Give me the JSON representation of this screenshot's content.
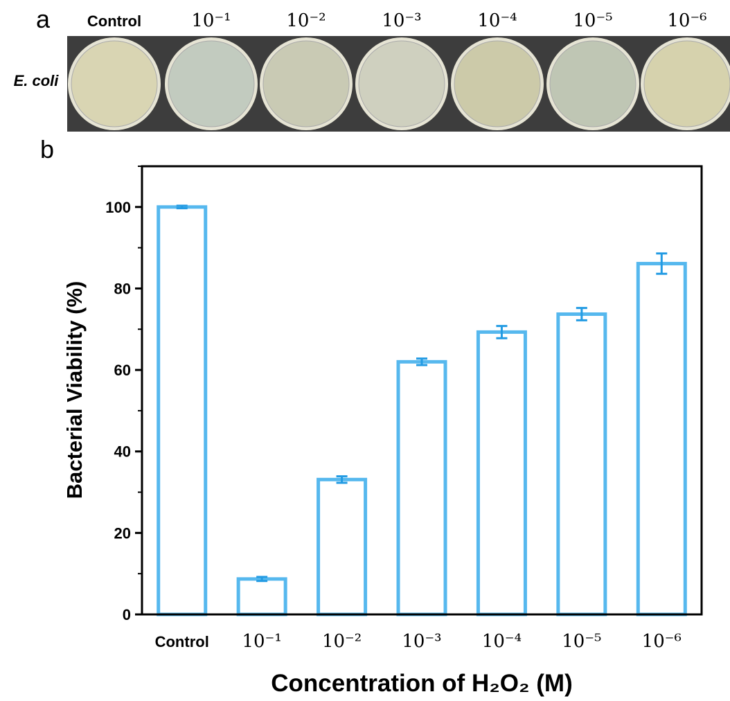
{
  "panel_a": {
    "label": "a",
    "row_label": "E. coli"
  },
  "chart_data": {
    "type": "bar",
    "panel_label": "b",
    "y_label": "Bacterial Viability (%)",
    "x_label": "Concentration of H₂O₂ (M)",
    "categories": [
      "Control",
      "10⁻¹",
      "10⁻²",
      "10⁻³",
      "10⁻⁴",
      "10⁻⁵",
      "10⁻⁶"
    ],
    "values": [
      100,
      8.7,
      33.1,
      62.0,
      69.3,
      73.7,
      86.1
    ],
    "errors": [
      0.3,
      0.5,
      0.8,
      0.8,
      1.5,
      1.5,
      2.5
    ],
    "color": "#56b8ee",
    "error_color": "#239be3",
    "ylim": [
      0,
      110
    ],
    "yticks": [
      0,
      20,
      40,
      60,
      80,
      100
    ],
    "yminorticks": [
      10,
      30,
      50,
      70,
      90,
      110
    ]
  }
}
